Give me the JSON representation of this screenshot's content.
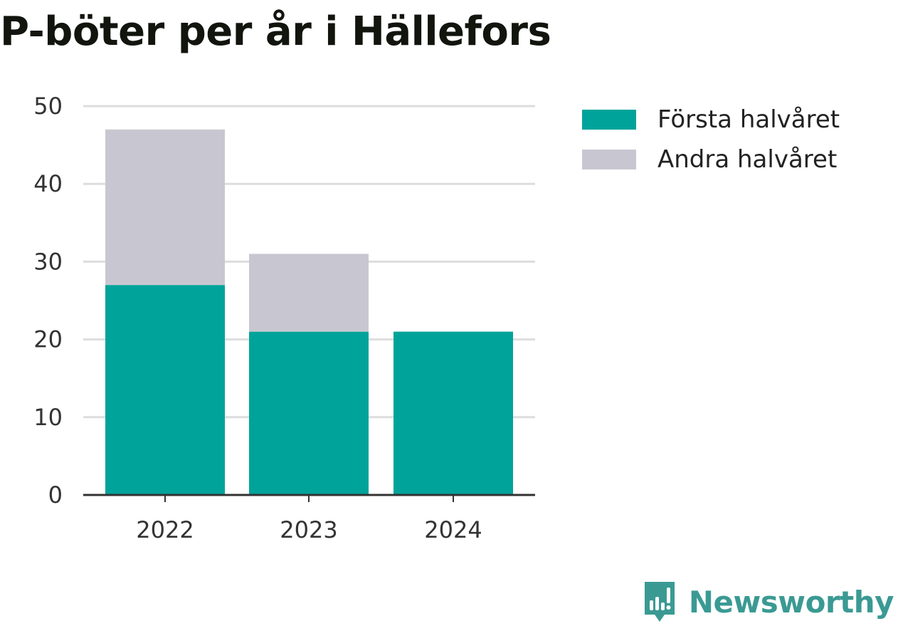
{
  "colors": {
    "first_half": "#00a39a",
    "second_half": "#c8c7d1",
    "grid": "#dddddd",
    "axis": "#333333",
    "brand": "#3a9a93"
  },
  "brand": {
    "name": "Newsworthy",
    "icon": "chart-speech-bubble-icon"
  },
  "chart_data": {
    "type": "bar",
    "stacked": true,
    "title": "P-böter per år i Hällefors",
    "xlabel": "",
    "ylabel": "",
    "categories": [
      "2022",
      "2023",
      "2024"
    ],
    "series": [
      {
        "name": "Första halvåret",
        "values": [
          27,
          21,
          21
        ]
      },
      {
        "name": "Andra halvåret",
        "values": [
          20,
          10,
          0
        ]
      }
    ],
    "ylim": [
      0,
      50
    ],
    "yticks": [
      "0",
      "10",
      "20",
      "30",
      "40",
      "50"
    ],
    "grid": true,
    "legend_position": "top-right"
  }
}
